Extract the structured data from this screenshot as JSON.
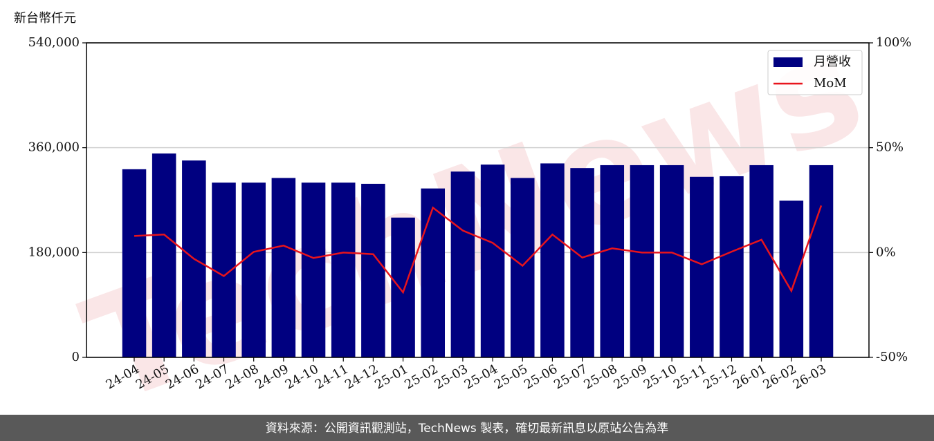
{
  "chart_data": {
    "type": "bar_line",
    "y_label": "新台幣仟元",
    "watermark": "TechNews",
    "footer": "資料來源：公開資訊觀測站，TechNews 製表，確切最新訊息以原站公告為準",
    "categories": [
      "24-04",
      "24-05",
      "24-06",
      "24-07",
      "24-08",
      "24-09",
      "24-10",
      "24-11",
      "24-12",
      "25-01",
      "25-02",
      "25-03",
      "25-04",
      "25-05",
      "25-06",
      "25-07",
      "25-08",
      "25-09",
      "25-10",
      "25-11",
      "25-12",
      "26-01",
      "26-02",
      "26-03"
    ],
    "series": [
      {
        "name": "月營收",
        "color": "#000080",
        "type": "bar",
        "values": [
          323000,
          350000,
          338000,
          300000,
          300000,
          308000,
          300000,
          300000,
          298000,
          240000,
          290000,
          319000,
          331000,
          308000,
          333000,
          325000,
          330000,
          330000,
          330000,
          310000,
          311000,
          330000,
          269000,
          330000
        ]
      },
      {
        "name": "MoM",
        "color": "#e8141c",
        "type": "line",
        "axis": "y2",
        "values": [
          7.9,
          8.6,
          -3,
          -11.2,
          0.3,
          3.3,
          -2.6,
          0,
          -0.8,
          -19,
          21.4,
          10.5,
          4.6,
          -6.3,
          8.6,
          -2.4,
          2,
          0,
          0,
          -5.6,
          0.4,
          6.1,
          -18.3,
          22.4
        ]
      }
    ],
    "ylim": [
      0,
      540000
    ],
    "yticks": [
      0,
      {
        "value": 180000,
        "label": "180,000"
      },
      {
        "value": 360000,
        "label": "360,000"
      },
      {
        "value": 540000,
        "label": "540,000"
      }
    ],
    "y2lim": [
      -50,
      100
    ],
    "y2ticks": [
      {
        "value": -50,
        "label": "-50%"
      },
      {
        "value": 0,
        "label": "0%"
      },
      {
        "value": 50,
        "label": "50%"
      },
      {
        "value": 100,
        "label": "100%"
      }
    ],
    "grid": true,
    "legend": "upper right"
  }
}
